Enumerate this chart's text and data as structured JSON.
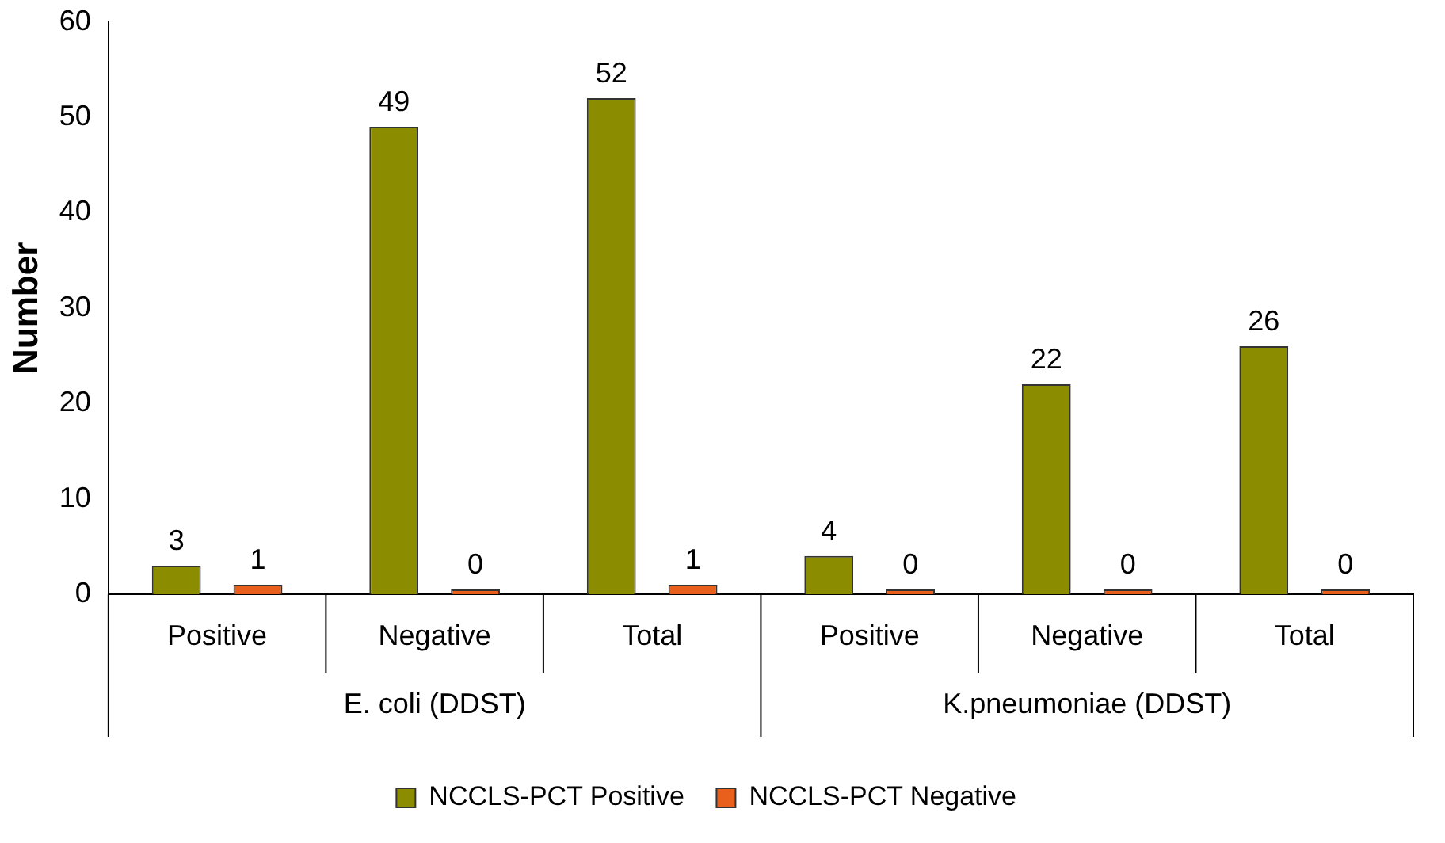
{
  "chart_data": {
    "type": "bar",
    "ylabel": "Number",
    "categories": [
      "Positive",
      "Negative",
      "Total",
      "Positive",
      "Negative",
      "Total"
    ],
    "series": [
      {
        "name": "NCCLS-PCT Positive",
        "color": "#8c8c00",
        "values": [
          3,
          49,
          52,
          4,
          22,
          26
        ]
      },
      {
        "name": "NCCLS-PCT Negative",
        "color": "#e8601c",
        "values": [
          1,
          0,
          1,
          0,
          0,
          0
        ]
      }
    ],
    "ylim": [
      0,
      60
    ],
    "yticks": [
      0,
      10,
      20,
      30,
      40,
      50,
      60
    ],
    "grid": false,
    "legend": "bottom",
    "data_labels": true,
    "annotations": [
      "E. coli (DDST)",
      "K.pneumoniae (DDST)"
    ]
  }
}
